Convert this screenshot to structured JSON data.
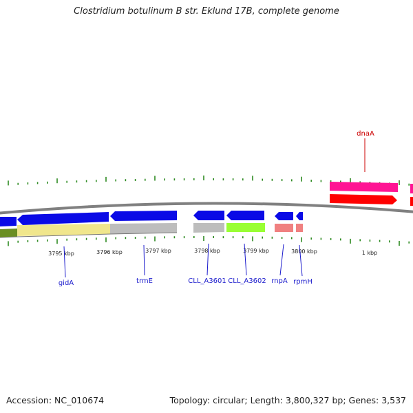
{
  "title": "Clostridium botulinum B str. Eklund 17B, complete genome",
  "footer": {
    "accession": "Accession: NC_010674",
    "topology": "Topology: circular; Length: 3,800,327 bp; Genes: 3,537"
  },
  "colors": {
    "backbone": "#808080",
    "tick": "#2e8b22",
    "forward_gene": "#0a0ae6",
    "label_blue": "#1a1acc",
    "label_red": "#cc0000"
  },
  "scale_labels": [
    "3795 kbp",
    "3796 kbp",
    "3797 kbp",
    "3798 kbp",
    "3799 kbp",
    "3800 kbp",
    "1 kbp"
  ],
  "genes": [
    {
      "name": "gidA",
      "color": "#1a1acc"
    },
    {
      "name": "trmE",
      "color": "#1a1acc"
    },
    {
      "name": "CLL_A3601",
      "color": "#1a1acc"
    },
    {
      "name": "CLL_A3602",
      "color": "#1a1acc"
    },
    {
      "name": "rnpA",
      "color": "#1a1acc"
    },
    {
      "name": "rpmH",
      "color": "#1a1acc"
    },
    {
      "name": "dnaA",
      "color": "#cc0000"
    }
  ]
}
